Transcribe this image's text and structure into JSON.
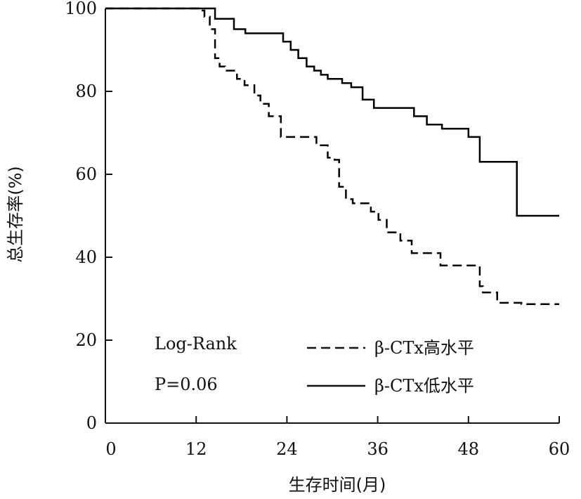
{
  "chart_data": {
    "type": "line",
    "xlabel": "生存时间(月)",
    "ylabel": "总生存率(%)",
    "xlim": [
      0,
      60
    ],
    "ylim": [
      0,
      100
    ],
    "xticks": [
      0,
      12,
      24,
      36,
      48,
      60
    ],
    "yticks": [
      0,
      20,
      40,
      60,
      80,
      100
    ],
    "grid": false,
    "annotations": [
      "Log-Rank",
      "P=0.06"
    ],
    "series": [
      {
        "name": "β-CTx高水平",
        "style": "dashed",
        "color": "#000000",
        "x": [
          0,
          12.4,
          13.1,
          13.8,
          14.5,
          15.1,
          15.8,
          17.4,
          18.4,
          19.7,
          20.5,
          21.6,
          23.2,
          24.4,
          26.5,
          27.9,
          29.4,
          30.3,
          30.9,
          31.8,
          32.7,
          33.2,
          35.1,
          36.1,
          37.2,
          39.0,
          40.5,
          43.1,
          44.3,
          48.0,
          49.5,
          49.9,
          51.8,
          55.0,
          60.0
        ],
        "y": [
          100,
          99.5,
          98,
          95,
          88,
          86,
          85,
          83,
          81.5,
          79,
          77,
          74,
          69,
          69,
          69,
          67,
          64,
          63.5,
          57,
          54,
          53,
          53,
          51,
          49,
          46,
          44,
          41,
          41,
          38,
          38,
          33,
          31.5,
          29,
          28.7,
          28.7
        ]
      },
      {
        "name": "β-CTx低水平",
        "style": "solid",
        "color": "#000000",
        "x": [
          0,
          14.5,
          17.0,
          18.5,
          23.5,
          24.5,
          25.5,
          26.6,
          27.6,
          28.5,
          29.4,
          31.3,
          32.5,
          34.0,
          35.5,
          37.0,
          40.8,
          42.5,
          44.5,
          48.0,
          49.5,
          53.5,
          54.4,
          60.0
        ],
        "y": [
          100,
          97.5,
          95,
          94,
          92,
          90,
          88,
          86,
          85,
          84,
          83,
          82,
          81,
          78,
          76,
          76,
          74,
          72,
          71,
          69,
          63,
          63,
          50,
          50
        ]
      }
    ]
  },
  "ytick_labels": [
    "0",
    "20",
    "40",
    "60",
    "80",
    "100"
  ],
  "xtick_labels": [
    "0",
    "12",
    "24",
    "36",
    "48",
    "60"
  ]
}
